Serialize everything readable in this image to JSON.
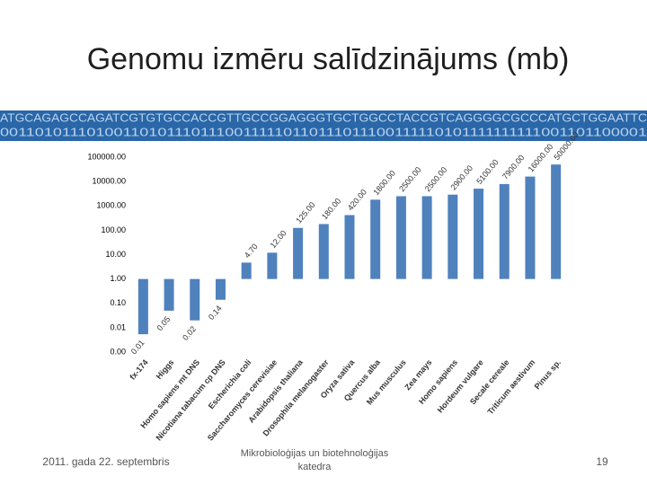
{
  "header": {
    "title": "Genomu izmēru salīdzinājums (mb)",
    "sequence": "ATGCAGAGCCAGATCGTGTGCCACCGTTGCCGGAGGGTGCTGGCCTACCGTCAGGGGCGCCCATGCTGGAATTC",
    "binary": "0011010111010011010111011100111110110111011100111110101111111111001101100001"
  },
  "chart_data": {
    "type": "bar",
    "log_scale": true,
    "color": "#4f81bd",
    "categories": [
      "fx-174",
      "Higgs",
      "Homo sapiens mt DNS",
      "Nicotiana tabacum cp DNS",
      "Escherichia coli",
      "Saccharomyces cerevisiae",
      "Arabidopsis thaliana",
      "Drosophila melanogaster",
      "Oryza sativa",
      "Quercus alba",
      "Mus musculus",
      "Zea mays",
      "Homo sapiens",
      "Hordeum vulgare",
      "Secale cereale",
      "Triticum aestivum",
      "Pinus sp."
    ],
    "values": [
      0.0054,
      0.05,
      0.02,
      0.14,
      4.7,
      12,
      125,
      180,
      420,
      1800,
      2500,
      2500,
      2900,
      5100,
      7900,
      16000,
      50000
    ],
    "value_labels": [
      "0.01",
      "0.05",
      "0.02",
      "0.14",
      "4.70",
      "12.00",
      "125.00",
      "180.00",
      "420.00",
      "1800.00",
      "2500.00",
      "2500.00",
      "2900.00",
      "5100.00",
      "7900.00",
      "16000.00",
      "50000.00"
    ],
    "ylim": [
      0.001,
      100000
    ],
    "yticks": [
      {
        "value": 0.001,
        "label": "0.00"
      },
      0.01,
      {
        "value": 0.1,
        "label": "0.10"
      },
      {
        "value": 1,
        "label": "1.00"
      },
      {
        "value": 10,
        "label": "10.00"
      },
      {
        "value": 100,
        "label": "100.00"
      },
      {
        "value": 1000,
        "label": "1000.00"
      },
      {
        "value": 10000,
        "label": "10000.00"
      },
      {
        "value": 100000,
        "label": "100000.00"
      }
    ]
  },
  "footer": {
    "date": "2011. gada 22. septembris",
    "department": "Mikrobioloģijas un biotehnoloģijas katedra",
    "page": "19"
  }
}
